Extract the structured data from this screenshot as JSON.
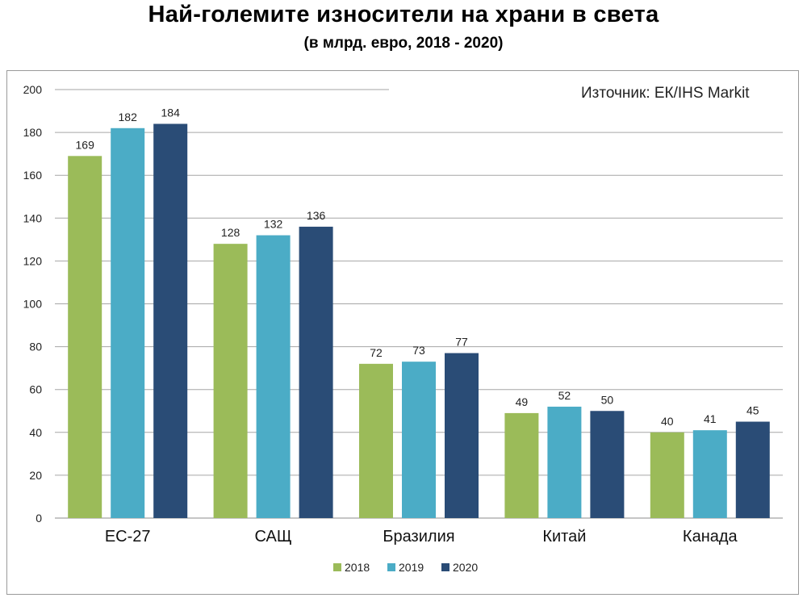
{
  "title": "Най-големите износители на храни в света",
  "subtitle": "(в млрд. евро, 2018 - 2020)",
  "source": "Източник: ЕК/IHS Markit",
  "colors": {
    "2018": "#9bbb59",
    "2019": "#4bacc6",
    "2020": "#2a4c76",
    "grid": "#a6a6a6"
  },
  "chart_data": {
    "type": "bar",
    "title": "Най-големите износители на храни в света",
    "subtitle": "(в млрд. евро, 2018 - 2020)",
    "categories": [
      "ЕС-27",
      "САЩ",
      "Бразилия",
      "Китай",
      "Канада"
    ],
    "series": [
      {
        "name": "2018",
        "values": [
          169,
          128,
          72,
          49,
          40
        ]
      },
      {
        "name": "2019",
        "values": [
          182,
          132,
          73,
          52,
          41
        ]
      },
      {
        "name": "2020",
        "values": [
          184,
          136,
          77,
          50,
          45
        ]
      }
    ],
    "ylim": [
      0,
      200
    ],
    "yticks": [
      0,
      20,
      40,
      60,
      80,
      100,
      120,
      140,
      160,
      180,
      200
    ],
    "grid": true,
    "legend": "bottom",
    "annotation": "Източник: ЕК/IHS Markit"
  }
}
